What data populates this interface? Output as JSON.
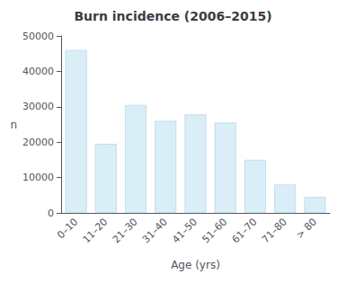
{
  "chart_data": {
    "type": "bar",
    "title": "Burn incidence (2006–2015)",
    "xlabel": "Age (yrs)",
    "ylabel": "n",
    "categories": [
      "0–10",
      "11–20",
      "21–30",
      "31–40",
      "41–50",
      "51–60",
      "61–70",
      "71–80",
      "> 80"
    ],
    "values": [
      46000,
      19500,
      30500,
      26000,
      27800,
      25500,
      15000,
      8000,
      4500
    ],
    "color": "#daeef7",
    "ylim": [
      0,
      50000
    ],
    "yticks": [
      0,
      10000,
      20000,
      30000,
      40000,
      50000
    ],
    "grid": false
  }
}
